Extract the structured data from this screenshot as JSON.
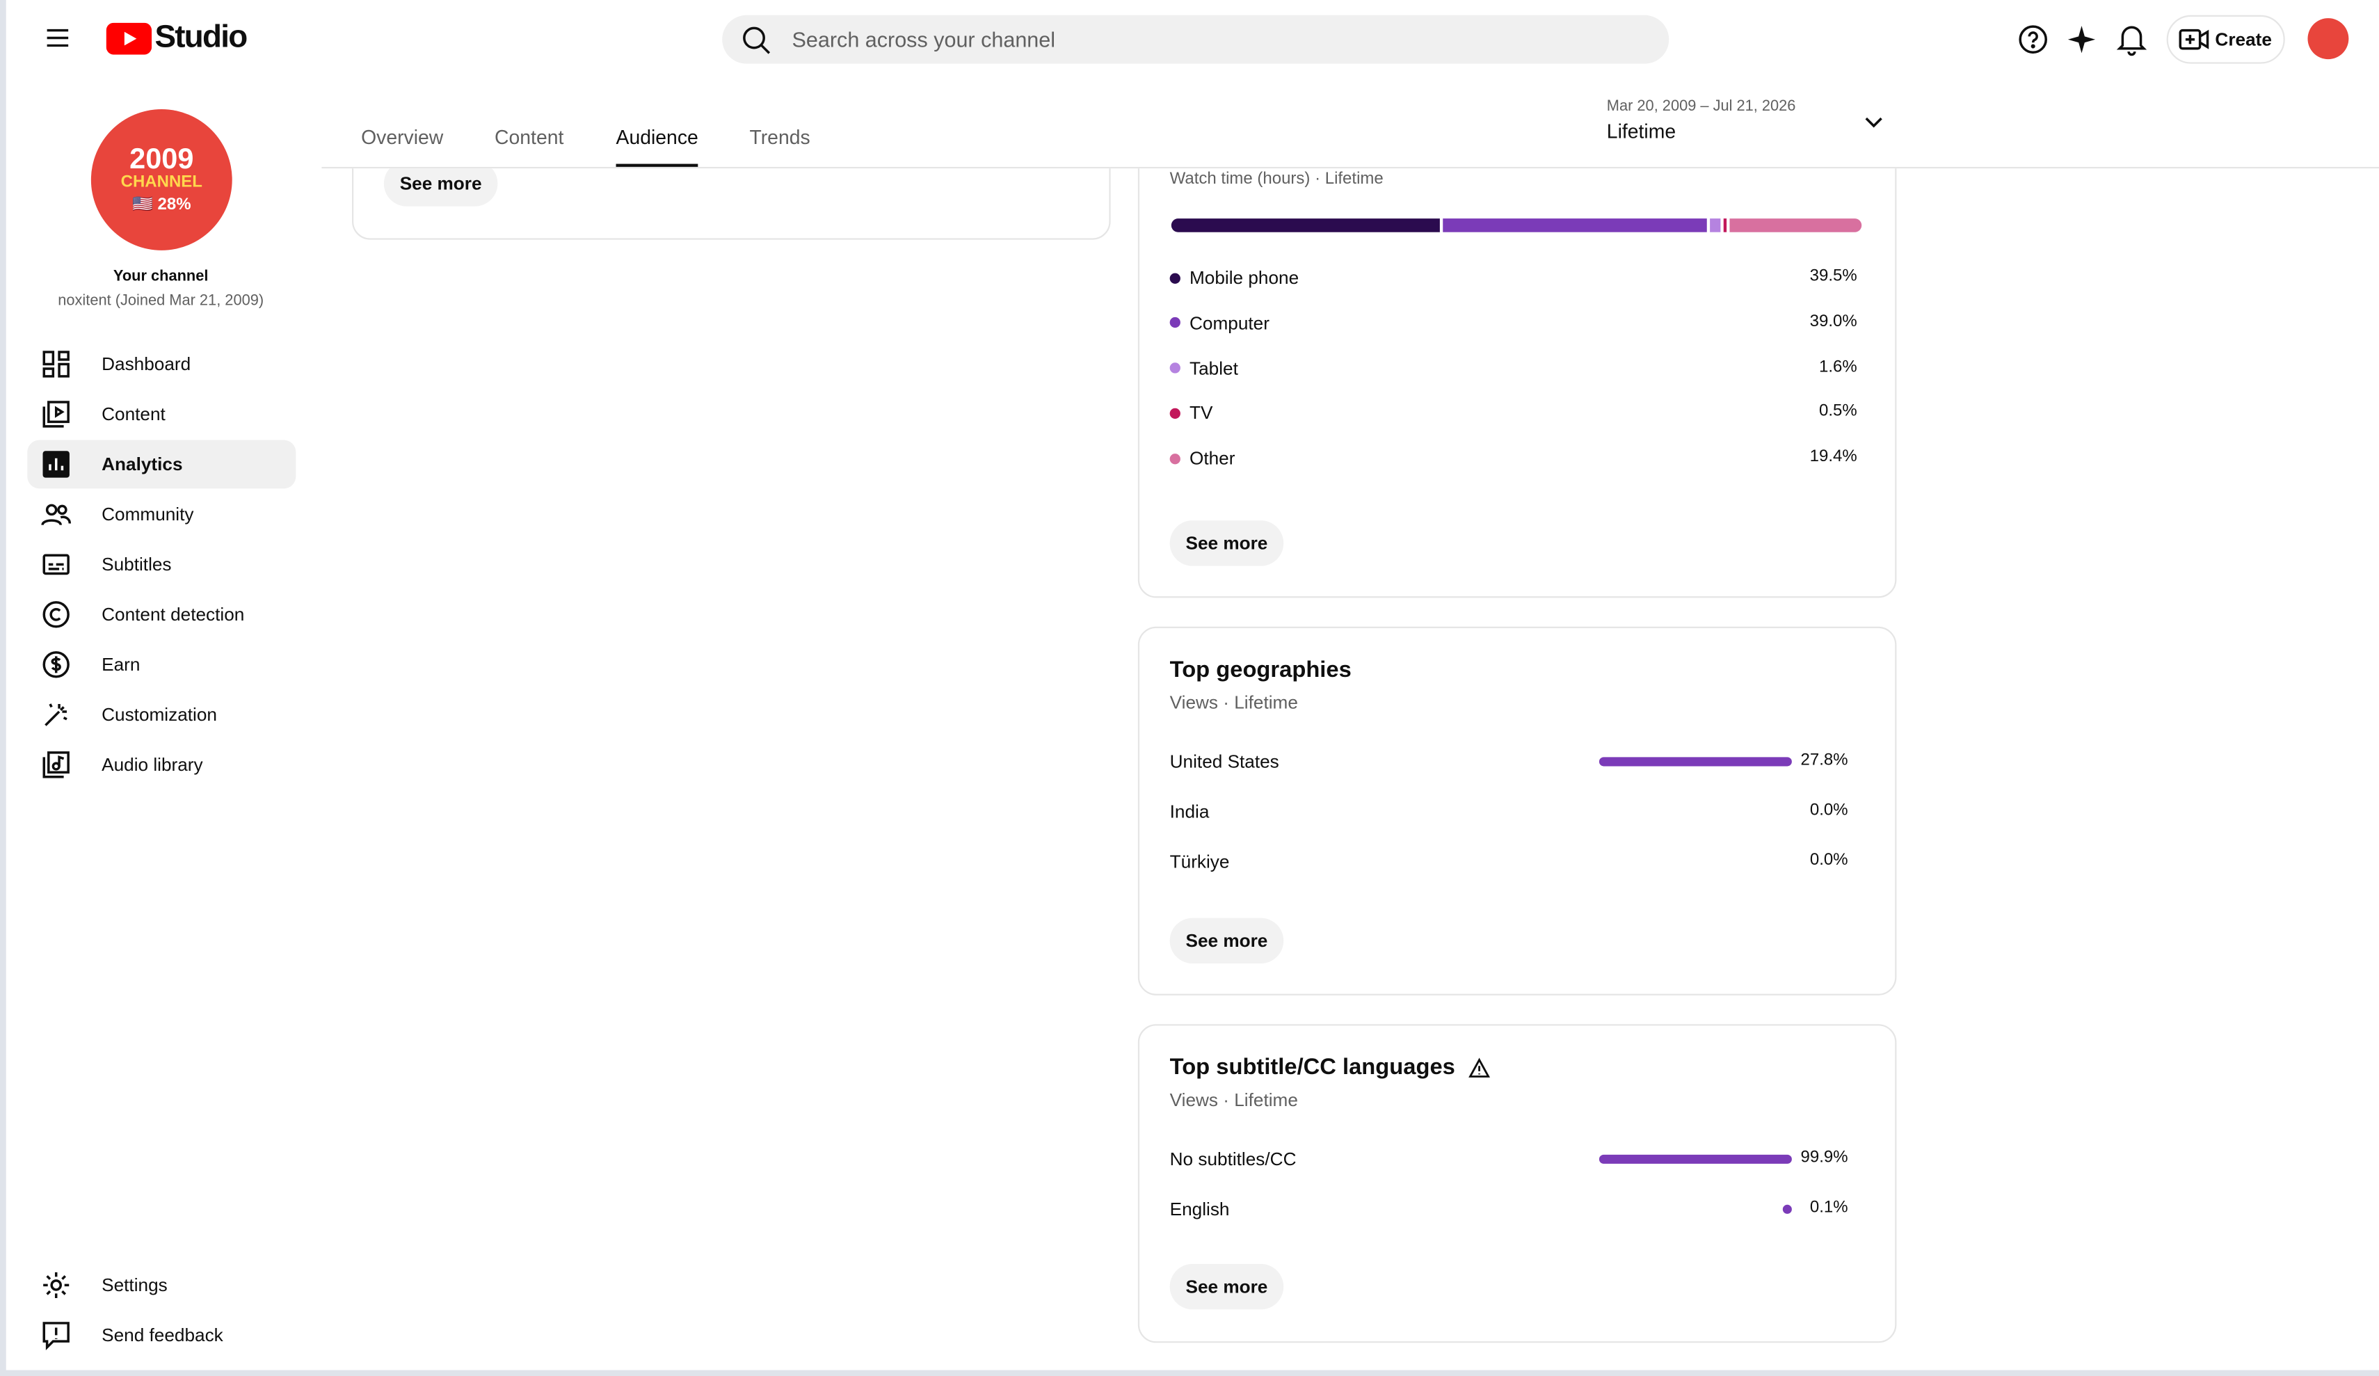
{
  "header": {
    "app_name": "Studio",
    "search_placeholder": "Search across your channel",
    "create_button": "Create"
  },
  "sidebar": {
    "avatar": {
      "line1": "2009",
      "line2": "CHANNEL",
      "line3": "🇺🇸 28%"
    },
    "channel_title": "Your channel",
    "channel_subtitle": "noxitent (Joined Mar 21, 2009)",
    "nav": [
      "Dashboard",
      "Content",
      "Analytics",
      "Community",
      "Subtitles",
      "Content detection",
      "Earn",
      "Customization",
      "Audio library"
    ],
    "active_nav_index": 2,
    "footer_nav": [
      "Settings",
      "Send feedback"
    ]
  },
  "tabs": [
    "Overview",
    "Content",
    "Audience",
    "Trends"
  ],
  "active_tab_index": 2,
  "date_range": {
    "dates": "Mar 20, 2009 – Jul 21, 2026",
    "period": "Lifetime"
  },
  "cards": {
    "previous": {
      "button": "See more"
    },
    "device_type": {
      "subtitle": "Watch time (hours) · Lifetime",
      "button": "See more",
      "items": [
        {
          "name": "Mobile phone",
          "color": "#2b0b4f",
          "value": 39.5,
          "value_label": "39.5%"
        },
        {
          "name": "Computer",
          "color": "#7b3bb8",
          "value": 39.0,
          "value_label": "39.0%"
        },
        {
          "name": "Tablet",
          "color": "#b583e0",
          "value": 1.6,
          "value_label": "1.6%"
        },
        {
          "name": "TV",
          "color": "#c2185b",
          "value": 0.5,
          "value_label": "0.5%"
        },
        {
          "name": "Other",
          "color": "#d8709f",
          "value": 19.4,
          "value_label": "19.4%"
        }
      ]
    },
    "geographies": {
      "title": "Top geographies",
      "subtitle": "Views · Lifetime",
      "button": "See more",
      "bar_color": "#7b3bb8",
      "items": [
        {
          "name": "United States",
          "value": 27.8,
          "value_label": "27.8%"
        },
        {
          "name": "India",
          "value": 0.0,
          "value_label": "0.0%"
        },
        {
          "name": "Türkiye",
          "value": 0.0,
          "value_label": "0.0%"
        }
      ]
    },
    "subtitles": {
      "title": "Top subtitle/CC languages",
      "subtitle": "Views · Lifetime",
      "button": "See more",
      "bar_color": "#7b3bb8",
      "items": [
        {
          "name": "No subtitles/CC",
          "value": 99.9,
          "value_label": "99.9%"
        },
        {
          "name": "English",
          "value": 0.1,
          "value_label": "0.1%"
        }
      ]
    }
  }
}
